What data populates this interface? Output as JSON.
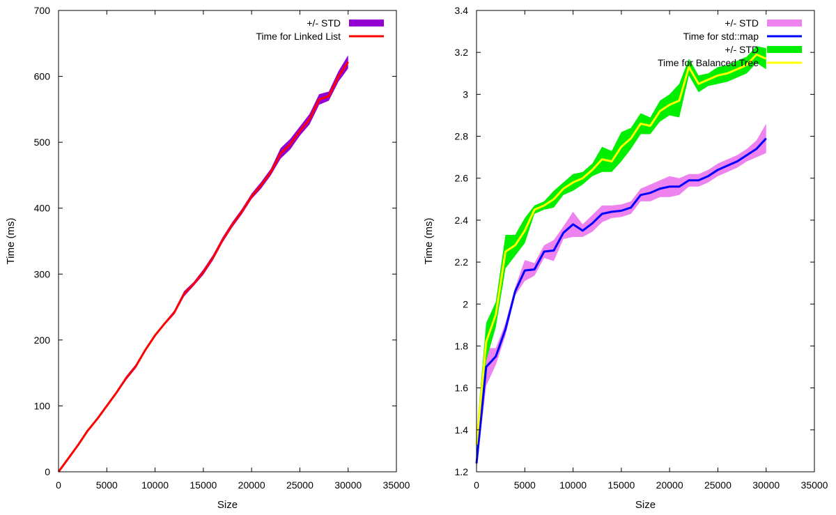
{
  "chart_data": [
    {
      "type": "line",
      "xlabel": "Size",
      "ylabel": "Time (ms)",
      "xlim": [
        0,
        35000
      ],
      "ylim": [
        0,
        700
      ],
      "xticks": [
        0,
        5000,
        10000,
        15000,
        20000,
        25000,
        30000,
        35000
      ],
      "yticks": [
        0,
        100,
        200,
        300,
        400,
        500,
        600,
        700
      ],
      "grid": false,
      "legend_position": "top-right",
      "series": [
        {
          "name": "Time for Linked List",
          "band_name": "+/- STD",
          "line_color": "#ff0000",
          "band_color": "#9400d3",
          "x": [
            0,
            1000,
            2000,
            3000,
            4000,
            5000,
            6000,
            7000,
            8000,
            9000,
            10000,
            11000,
            12000,
            13000,
            14000,
            15000,
            16000,
            17000,
            18000,
            19000,
            20000,
            21000,
            22000,
            23000,
            24000,
            25000,
            26000,
            27000,
            28000,
            29000,
            30000
          ],
          "y": [
            0,
            20,
            40,
            62,
            80,
            100,
            120,
            142,
            160,
            185,
            207,
            225,
            242,
            270,
            285,
            303,
            325,
            352,
            375,
            395,
            418,
            435,
            455,
            483,
            497,
            517,
            535,
            565,
            570,
            600,
            622
          ],
          "std": [
            1,
            1,
            1,
            2,
            2,
            2,
            2,
            3,
            3,
            2,
            2,
            2,
            3,
            4,
            3,
            4,
            4,
            4,
            4,
            4,
            4,
            5,
            5,
            8,
            8,
            7,
            8,
            8,
            7,
            8,
            10
          ]
        }
      ]
    },
    {
      "type": "line",
      "xlabel": "Size",
      "ylabel": "Time (ms)",
      "xlim": [
        0,
        35000
      ],
      "ylim": [
        1.2,
        3.4
      ],
      "xticks": [
        0,
        5000,
        10000,
        15000,
        20000,
        25000,
        30000,
        35000
      ],
      "yticks": [
        1.2,
        1.4,
        1.6,
        1.8,
        2,
        2.2,
        2.4,
        2.6,
        2.8,
        3,
        3.2,
        3.4
      ],
      "grid": false,
      "legend_position": "top-right",
      "series": [
        {
          "name": "Time for std::map",
          "band_name": "+/- STD",
          "line_color": "#0000ff",
          "band_color": "#ee82ee",
          "x": [
            0,
            1000,
            2000,
            3000,
            4000,
            5000,
            6000,
            7000,
            8000,
            9000,
            10000,
            11000,
            12000,
            13000,
            14000,
            15000,
            16000,
            17000,
            18000,
            19000,
            20000,
            21000,
            22000,
            23000,
            24000,
            25000,
            26000,
            27000,
            28000,
            29000,
            30000
          ],
          "y": [
            1.24,
            1.7,
            1.75,
            1.88,
            2.06,
            2.16,
            2.165,
            2.25,
            2.255,
            2.34,
            2.38,
            2.35,
            2.385,
            2.43,
            2.44,
            2.445,
            2.46,
            2.52,
            2.53,
            2.55,
            2.56,
            2.56,
            2.59,
            2.59,
            2.61,
            2.64,
            2.66,
            2.68,
            2.71,
            2.74,
            2.79
          ],
          "std": [
            0.03,
            0.09,
            0.04,
            0.03,
            0.02,
            0.05,
            0.03,
            0.03,
            0.05,
            0.03,
            0.06,
            0.03,
            0.04,
            0.04,
            0.03,
            0.03,
            0.03,
            0.03,
            0.04,
            0.04,
            0.05,
            0.04,
            0.03,
            0.03,
            0.03,
            0.03,
            0.03,
            0.03,
            0.03,
            0.04,
            0.07
          ]
        },
        {
          "name": "Time for Balanced Tree",
          "band_name": "+/- STD",
          "line_color": "#ffff00",
          "band_color": "#00ee00",
          "x": [
            0,
            1000,
            2000,
            3000,
            4000,
            5000,
            6000,
            7000,
            8000,
            9000,
            10000,
            11000,
            12000,
            13000,
            14000,
            15000,
            16000,
            17000,
            18000,
            19000,
            20000,
            21000,
            22000,
            23000,
            24000,
            25000,
            26000,
            27000,
            28000,
            29000,
            30000
          ],
          "y": [
            1.33,
            1.82,
            1.95,
            2.25,
            2.28,
            2.35,
            2.45,
            2.47,
            2.5,
            2.55,
            2.58,
            2.6,
            2.64,
            2.69,
            2.68,
            2.75,
            2.79,
            2.86,
            2.85,
            2.92,
            2.95,
            2.97,
            3.13,
            3.05,
            3.07,
            3.09,
            3.1,
            3.12,
            3.14,
            3.19,
            3.17
          ],
          "std": [
            0.05,
            0.09,
            0.06,
            0.08,
            0.05,
            0.06,
            0.02,
            0.02,
            0.04,
            0.03,
            0.04,
            0.03,
            0.03,
            0.06,
            0.05,
            0.07,
            0.05,
            0.05,
            0.04,
            0.05,
            0.05,
            0.08,
            0.04,
            0.04,
            0.03,
            0.04,
            0.04,
            0.04,
            0.04,
            0.04,
            0.05
          ]
        }
      ]
    }
  ]
}
